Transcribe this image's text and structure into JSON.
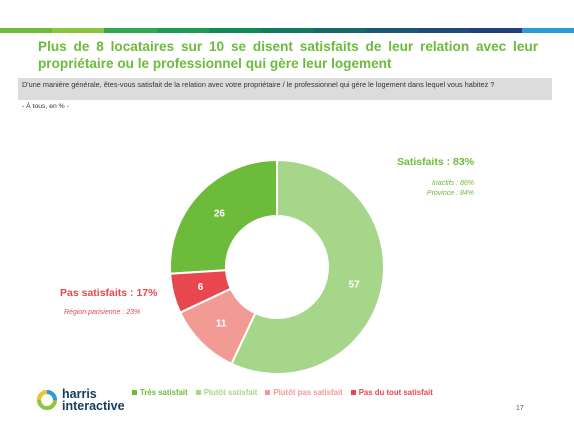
{
  "header": {
    "title": "Plus de 8 locataires sur 10 se disent satisfaits de leur relation avec leur propriétaire ou le professionnel qui gère leur logement",
    "question": "D'une manière générale, êtes-vous satisfait de la relation avec votre propriétaire / le professionnel qui gère le logement dans lequel vous habitez ?",
    "base": "- À tous, en % -"
  },
  "annotations": {
    "satisfied_label": "Satisfaits : 83%",
    "satisfied_sub1": "Inactifs : 86%",
    "satisfied_sub2": "Province : 84%",
    "unsatisfied_label": "Pas satisfaits : 17%",
    "unsatisfied_sub": "Région parisienne : 23%"
  },
  "chart_data": {
    "type": "pie",
    "donut": true,
    "categories": [
      "Très satisfait",
      "Plutôt satisfait",
      "Plutôt pas satisfait",
      "Pas du tout satisfait"
    ],
    "values": [
      26,
      57,
      11,
      6
    ],
    "colors": [
      "#6dbb3a",
      "#a6d68a",
      "#f29a94",
      "#e8474f"
    ]
  },
  "footer": {
    "logo_line1": "harris",
    "logo_line2": "interactive",
    "page_number": "17"
  },
  "topbar_colors": [
    "#6dbb3a",
    "#8cc63f",
    "#2fa84f",
    "#1f9a56",
    "#0f8b5a",
    "#127a5e",
    "#156a68",
    "#1a5a70",
    "#1d4c78",
    "#20407e",
    "#2c9ad6"
  ]
}
